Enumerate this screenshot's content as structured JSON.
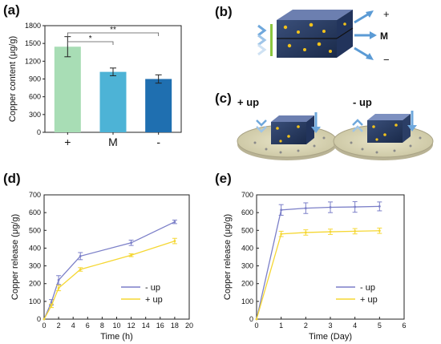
{
  "panels": {
    "a": "(a)",
    "b": "(b)",
    "c": "(c)",
    "d": "(d)",
    "e": "(e)"
  },
  "illustrations": {
    "b_plus": "+",
    "b_m": "M",
    "b_minus": "−",
    "c_plus_up": "+ up",
    "c_minus_up": "- up"
  },
  "colors": {
    "bar_plus": "#a8ddb5",
    "bar_m": "#4db3d6",
    "bar_minus": "#1f6fb0",
    "line_minus_up": "#7b7fc8",
    "line_plus_up": "#f5d733"
  },
  "chart_data": [
    {
      "type": "bar",
      "panel": "a",
      "categories": [
        "+",
        "M",
        "-"
      ],
      "values": [
        1445,
        1020,
        900
      ],
      "errors": [
        170,
        65,
        70
      ],
      "ylabel": "Copper content (μg/g)",
      "ylim": [
        0,
        1800
      ],
      "yticks": [
        0,
        300,
        600,
        900,
        1200,
        1500,
        1800
      ],
      "significance": [
        {
          "from": "+",
          "to": "M",
          "mark": "*"
        },
        {
          "from": "+",
          "to": "-",
          "mark": "**"
        }
      ]
    },
    {
      "type": "line",
      "panel": "d",
      "xlabel": "Time (h)",
      "ylabel": "Copper release  (μg/g)",
      "xlim": [
        0,
        20
      ],
      "ylim": [
        0,
        700
      ],
      "xticks": [
        0,
        2,
        4,
        6,
        8,
        10,
        12,
        14,
        16,
        18,
        20
      ],
      "yticks": [
        0,
        100,
        200,
        300,
        400,
        500,
        600,
        700
      ],
      "legend": "lower-right",
      "series": [
        {
          "name": "- up",
          "x": [
            0,
            1,
            2,
            5,
            12,
            18
          ],
          "y": [
            0,
            95,
            220,
            355,
            430,
            548
          ],
          "err": [
            0,
            15,
            25,
            20,
            15,
            10
          ]
        },
        {
          "name": "+ up",
          "x": [
            0,
            1,
            2,
            5,
            12,
            18
          ],
          "y": [
            0,
            75,
            175,
            280,
            360,
            440
          ],
          "err": [
            0,
            10,
            15,
            10,
            8,
            15
          ]
        }
      ]
    },
    {
      "type": "line",
      "panel": "e",
      "xlabel": "Time (Day)",
      "ylabel": "Copper release  (μg/g)",
      "xlim": [
        0,
        6
      ],
      "ylim": [
        0,
        700
      ],
      "xticks": [
        0,
        1,
        2,
        3,
        4,
        5,
        6
      ],
      "yticks": [
        0,
        100,
        200,
        300,
        400,
        500,
        600,
        700
      ],
      "legend": "lower-right",
      "series": [
        {
          "name": "- up",
          "x": [
            0,
            1,
            2,
            3,
            4,
            5
          ],
          "y": [
            0,
            615,
            625,
            630,
            632,
            635
          ],
          "err": [
            0,
            30,
            30,
            30,
            30,
            25
          ]
        },
        {
          "name": "+ up",
          "x": [
            0,
            1,
            2,
            3,
            4,
            5
          ],
          "y": [
            0,
            480,
            488,
            492,
            495,
            498
          ],
          "err": [
            0,
            15,
            15,
            15,
            15,
            15
          ]
        }
      ]
    }
  ]
}
